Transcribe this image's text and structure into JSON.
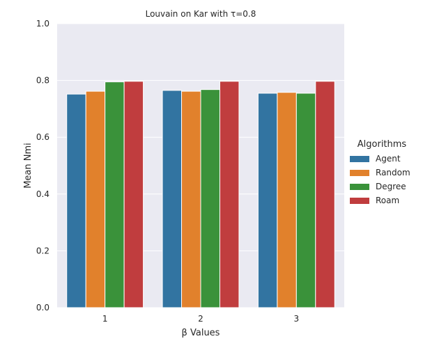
{
  "chart_data": {
    "type": "bar",
    "title": "Louvain on Kar with τ=0.8",
    "xlabel": "β Values",
    "ylabel": "Mean Nmi",
    "categories": [
      "1",
      "2",
      "3"
    ],
    "ylim": [
      0,
      1.0
    ],
    "yticks": [
      "0.0",
      "0.2",
      "0.4",
      "0.6",
      "0.8",
      "1.0"
    ],
    "grid": true,
    "legend": {
      "title": "Algorithms",
      "placement": "right"
    },
    "series": [
      {
        "name": "Agent",
        "color": "#3274a1",
        "values": [
          0.752,
          0.765,
          0.755
        ]
      },
      {
        "name": "Random",
        "color": "#e1812c",
        "values": [
          0.762,
          0.762,
          0.758
        ]
      },
      {
        "name": "Degree",
        "color": "#3a923a",
        "values": [
          0.795,
          0.768,
          0.755
        ]
      },
      {
        "name": "Roam",
        "color": "#c03d3e",
        "values": [
          0.797,
          0.797,
          0.797
        ]
      }
    ]
  }
}
